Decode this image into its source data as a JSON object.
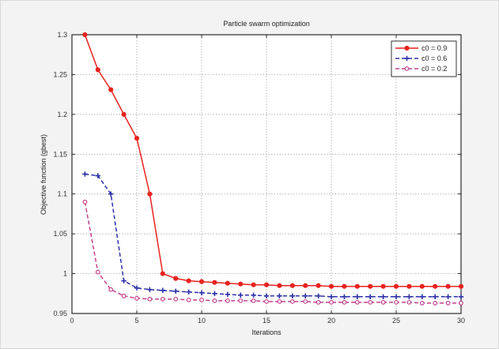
{
  "chart_data": {
    "type": "line",
    "title": "Particle swarm optimization",
    "xlabel": "Iterations",
    "ylabel": "Objective function (gbest)",
    "xlim": [
      0,
      30
    ],
    "ylim": [
      0.95,
      1.3
    ],
    "xticks": [
      "0",
      "5",
      "10",
      "15",
      "20",
      "25",
      "30"
    ],
    "yticks": [
      "0.95",
      "1",
      "1.05",
      "1.1",
      "1.15",
      "1.2",
      "1.25",
      "1.3"
    ],
    "grid": true,
    "legend_position": "top-right",
    "series": [
      {
        "name": "c0 = 0.9",
        "color": "#e8231f",
        "line_style": "solid",
        "marker": "dot",
        "x": [
          1,
          2,
          3,
          4,
          5,
          6,
          7,
          8,
          9,
          10,
          11,
          12,
          13,
          14,
          15,
          16,
          17,
          18,
          19,
          20,
          21,
          22,
          23,
          24,
          25,
          26,
          27,
          28,
          29,
          30
        ],
        "values": [
          1.3,
          1.256,
          1.231,
          1.2,
          1.17,
          1.1,
          1.0,
          0.994,
          0.991,
          0.99,
          0.989,
          0.988,
          0.987,
          0.986,
          0.986,
          0.985,
          0.985,
          0.985,
          0.985,
          0.984,
          0.984,
          0.984,
          0.984,
          0.984,
          0.984,
          0.984,
          0.984,
          0.984,
          0.984,
          0.984
        ]
      },
      {
        "name": "c0 = 0.6",
        "color": "#2b2fa8",
        "line_style": "dashed",
        "marker": "plus",
        "x": [
          1,
          2,
          3,
          4,
          5,
          6,
          7,
          8,
          9,
          10,
          11,
          12,
          13,
          14,
          15,
          16,
          17,
          18,
          19,
          20,
          21,
          22,
          23,
          24,
          25,
          26,
          27,
          28,
          29,
          30
        ],
        "values": [
          1.125,
          1.123,
          1.1,
          0.991,
          0.982,
          0.98,
          0.979,
          0.978,
          0.977,
          0.976,
          0.975,
          0.974,
          0.973,
          0.973,
          0.972,
          0.972,
          0.972,
          0.972,
          0.972,
          0.971,
          0.971,
          0.971,
          0.971,
          0.971,
          0.971,
          0.971,
          0.971,
          0.971,
          0.971,
          0.971
        ]
      },
      {
        "name": "c0 = 0.2",
        "color": "#c2408a",
        "line_style": "dashed",
        "marker": "circle",
        "x": [
          1,
          2,
          3,
          4,
          5,
          6,
          7,
          8,
          9,
          10,
          11,
          12,
          13,
          14,
          15,
          16,
          17,
          18,
          19,
          20,
          21,
          22,
          23,
          24,
          25,
          26,
          27,
          28,
          29,
          30
        ],
        "values": [
          1.09,
          1.002,
          0.98,
          0.972,
          0.969,
          0.968,
          0.968,
          0.968,
          0.967,
          0.967,
          0.966,
          0.966,
          0.966,
          0.966,
          0.965,
          0.965,
          0.965,
          0.965,
          0.964,
          0.964,
          0.964,
          0.964,
          0.964,
          0.964,
          0.964,
          0.964,
          0.963,
          0.963,
          0.963,
          0.963
        ]
      }
    ]
  }
}
